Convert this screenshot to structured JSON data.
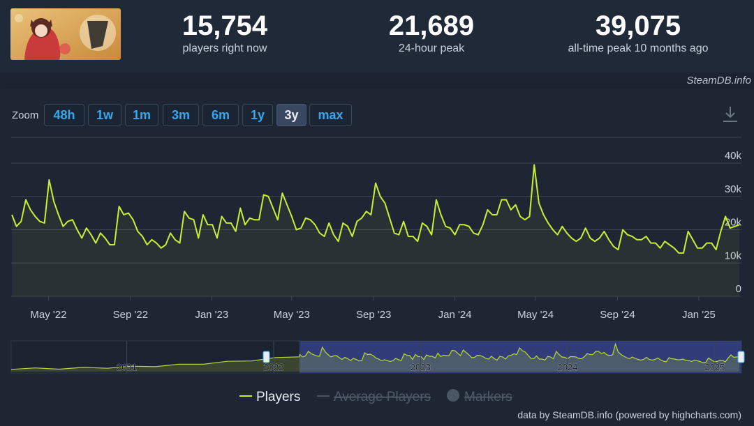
{
  "header": {
    "logo_icon": "game-logo-icon",
    "stats": [
      {
        "value": "15,754",
        "label": "players right now"
      },
      {
        "value": "21,689",
        "label": "24-hour peak"
      },
      {
        "value": "39,075",
        "label": "all-time peak 10 months ago"
      }
    ]
  },
  "credit_top": "SteamDB.info",
  "zoom": {
    "label": "Zoom",
    "buttons": [
      "48h",
      "1w",
      "1m",
      "3m",
      "6m",
      "1y",
      "3y",
      "max"
    ],
    "active": "3y"
  },
  "download_icon": "download-icon",
  "legend": {
    "players": "Players",
    "average": "Average Players",
    "markers": "Markers"
  },
  "credit_bottom": "data by SteamDB.info (powered by highcharts.com)",
  "colors": {
    "line": "#c8f031",
    "accent": "#35a8f0",
    "navigator_selection": "#3a4690"
  },
  "chart_data": {
    "type": "line",
    "x_ticks": [
      "May '22",
      "Sep '22",
      "Jan '23",
      "May '23",
      "Sep '23",
      "Jan '24",
      "May '24",
      "Sep '24",
      "Jan '25"
    ],
    "y_ticks": [
      "0",
      "10k",
      "20k",
      "30k",
      "40k"
    ],
    "ylim": [
      0,
      40000
    ],
    "xlim": [
      "2022-03-06",
      "2025-03-06"
    ],
    "grid": true,
    "legend_position": "bottom",
    "series": [
      {
        "name": "Players",
        "x": [
          "2022-03-07",
          "2022-03-14",
          "2022-03-21",
          "2022-03-28",
          "2022-04-04",
          "2022-04-11",
          "2022-04-18",
          "2022-04-25",
          "2022-05-02",
          "2022-05-09",
          "2022-05-16",
          "2022-05-23",
          "2022-05-30",
          "2022-06-06",
          "2022-06-13",
          "2022-06-20",
          "2022-06-27",
          "2022-07-04",
          "2022-07-11",
          "2022-07-18",
          "2022-07-25",
          "2022-08-01",
          "2022-08-08",
          "2022-08-15",
          "2022-08-22",
          "2022-08-29",
          "2022-09-05",
          "2022-09-12",
          "2022-09-19",
          "2022-09-26",
          "2022-10-03",
          "2022-10-10",
          "2022-10-17",
          "2022-10-24",
          "2022-10-31",
          "2022-11-07",
          "2022-11-14",
          "2022-11-21",
          "2022-11-28",
          "2022-12-05",
          "2022-12-12",
          "2022-12-19",
          "2022-12-26",
          "2023-01-02",
          "2023-01-09",
          "2023-01-16",
          "2023-01-23",
          "2023-01-30",
          "2023-02-06",
          "2023-02-13",
          "2023-02-20",
          "2023-02-27",
          "2023-03-06",
          "2023-03-13",
          "2023-03-20",
          "2023-03-27",
          "2023-04-03",
          "2023-04-10",
          "2023-04-17",
          "2023-04-24",
          "2023-05-01",
          "2023-05-08",
          "2023-05-15",
          "2023-05-22",
          "2023-05-29",
          "2023-06-05",
          "2023-06-12",
          "2023-06-19",
          "2023-06-26",
          "2023-07-03",
          "2023-07-10",
          "2023-07-17",
          "2023-07-24",
          "2023-07-31",
          "2023-08-07",
          "2023-08-14",
          "2023-08-21",
          "2023-08-28",
          "2023-09-04",
          "2023-09-11",
          "2023-09-18",
          "2023-09-25",
          "2023-10-02",
          "2023-10-09",
          "2023-10-16",
          "2023-10-23",
          "2023-10-30",
          "2023-11-06",
          "2023-11-13",
          "2023-11-20",
          "2023-11-27",
          "2023-12-04",
          "2023-12-11",
          "2023-12-18",
          "2023-12-25",
          "2024-01-01",
          "2024-01-08",
          "2024-01-15",
          "2024-01-22",
          "2024-01-29",
          "2024-02-05",
          "2024-02-12",
          "2024-02-19",
          "2024-02-26",
          "2024-03-04",
          "2024-03-11",
          "2024-03-18",
          "2024-03-25",
          "2024-04-01",
          "2024-04-08",
          "2024-04-15",
          "2024-04-22",
          "2024-04-29",
          "2024-05-06",
          "2024-05-13",
          "2024-05-20",
          "2024-05-27",
          "2024-06-03",
          "2024-06-10",
          "2024-06-17",
          "2024-06-24",
          "2024-07-01",
          "2024-07-08",
          "2024-07-15",
          "2024-07-22",
          "2024-07-29",
          "2024-08-05",
          "2024-08-12",
          "2024-08-19",
          "2024-08-26",
          "2024-09-02",
          "2024-09-09",
          "2024-09-16",
          "2024-09-23",
          "2024-09-30",
          "2024-10-07",
          "2024-10-14",
          "2024-10-21",
          "2024-10-28",
          "2024-11-04",
          "2024-11-11",
          "2024-11-18",
          "2024-11-25",
          "2024-12-02",
          "2024-12-09",
          "2024-12-16",
          "2024-12-23",
          "2024-12-30",
          "2025-01-06",
          "2025-01-13",
          "2025-01-20",
          "2025-01-27",
          "2025-02-03",
          "2025-02-10",
          "2025-02-17",
          "2025-02-24",
          "2025-03-03"
        ],
        "values": [
          24500,
          21000,
          22500,
          29000,
          26000,
          24000,
          22500,
          22000,
          35000,
          28500,
          24500,
          21000,
          22500,
          23000,
          20000,
          17500,
          20500,
          18500,
          16000,
          19000,
          17500,
          15500,
          15500,
          27000,
          24500,
          25000,
          23000,
          19500,
          18000,
          15500,
          17000,
          16000,
          14500,
          15500,
          19000,
          17000,
          16000,
          25500,
          23500,
          23000,
          17500,
          24500,
          21500,
          21500,
          17500,
          24000,
          22000,
          22000,
          19500,
          26500,
          21500,
          23500,
          23000,
          23000,
          30500,
          30000,
          26500,
          23000,
          31000,
          27500,
          24000,
          20000,
          20500,
          23500,
          23000,
          21500,
          19000,
          18000,
          22000,
          18500,
          16500,
          22000,
          21000,
          18000,
          22500,
          23500,
          25500,
          24500,
          34000,
          30000,
          28000,
          23500,
          19000,
          18500,
          22500,
          18000,
          18000,
          16500,
          22000,
          21000,
          18500,
          29000,
          24500,
          21000,
          20500,
          18500,
          21500,
          21500,
          21000,
          19000,
          18500,
          21500,
          26000,
          24500,
          24500,
          29000,
          29000,
          26000,
          27500,
          24000,
          23000,
          24000,
          39500,
          28000,
          24500,
          22000,
          20000,
          18500,
          21000,
          19000,
          17500,
          16500,
          17500,
          20500,
          17500,
          16500,
          17500,
          19500,
          17000,
          15000,
          14000,
          20000,
          18500,
          18000,
          17000,
          17000,
          18000,
          16000,
          16000,
          14500,
          16500,
          15500,
          14500,
          13000,
          13000,
          19500,
          17000,
          14500,
          14500,
          16000,
          16000,
          14000,
          19500,
          24000,
          20500,
          21000,
          21500
        ]
      }
    ],
    "navigator": {
      "x_ticks": [
        "2021",
        "2022",
        "2023",
        "2024",
        "2025"
      ]
    }
  }
}
